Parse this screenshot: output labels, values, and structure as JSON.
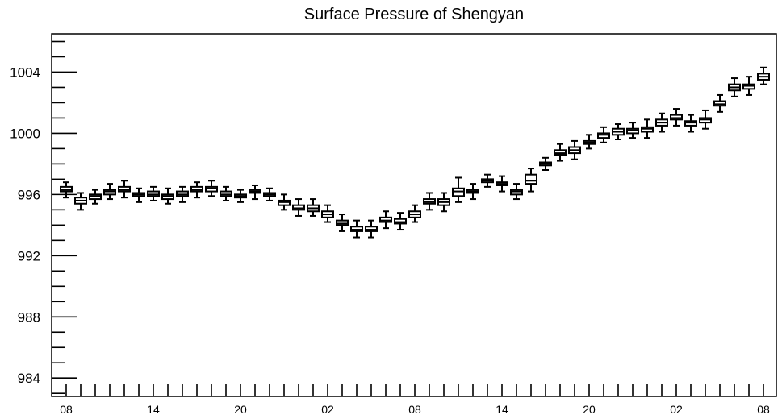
{
  "chart_data": {
    "type": "box",
    "title": "Surface Pressure of Shengyan",
    "xtick_labels": [
      "08",
      "14",
      "20",
      "02",
      "08",
      "14",
      "20",
      "02",
      "08"
    ],
    "yticks": [
      984,
      988,
      992,
      996,
      1000,
      1004
    ],
    "ylim": [
      982.8,
      1006.5
    ],
    "grid": false,
    "box_color": "#000000",
    "boxes": [
      {
        "hour": 8,
        "min": 995.8,
        "q1": 996.2,
        "median": 996.3,
        "q3": 996.5,
        "max": 996.8
      },
      {
        "hour": 9,
        "min": 995.0,
        "q1": 995.4,
        "median": 995.6,
        "q3": 995.8,
        "max": 996.1
      },
      {
        "hour": 10,
        "min": 995.4,
        "q1": 995.7,
        "median": 995.9,
        "q3": 996.0,
        "max": 996.3
      },
      {
        "hour": 11,
        "min": 995.7,
        "q1": 996.0,
        "median": 996.2,
        "q3": 996.3,
        "max": 996.7
      },
      {
        "hour": 12,
        "min": 995.8,
        "q1": 996.2,
        "median": 996.3,
        "q3": 996.5,
        "max": 996.9
      },
      {
        "hour": 13,
        "min": 995.5,
        "q1": 995.9,
        "median": 996.0,
        "q3": 996.1,
        "max": 996.4
      },
      {
        "hour": 14,
        "min": 995.6,
        "q1": 995.9,
        "median": 996.0,
        "q3": 996.2,
        "max": 996.5
      },
      {
        "hour": 15,
        "min": 995.4,
        "q1": 995.7,
        "median": 995.9,
        "q3": 996.0,
        "max": 996.4
      },
      {
        "hour": 16,
        "min": 995.5,
        "q1": 995.9,
        "median": 996.0,
        "q3": 996.2,
        "max": 996.5
      },
      {
        "hour": 17,
        "min": 995.8,
        "q1": 996.2,
        "median": 996.3,
        "q3": 996.5,
        "max": 996.8
      },
      {
        "hour": 18,
        "min": 995.9,
        "q1": 996.2,
        "median": 996.4,
        "q3": 996.5,
        "max": 996.9
      },
      {
        "hour": 19,
        "min": 995.6,
        "q1": 995.9,
        "median": 996.0,
        "q3": 996.2,
        "max": 996.5
      },
      {
        "hour": 20,
        "min": 995.5,
        "q1": 995.8,
        "median": 995.9,
        "q3": 996.0,
        "max": 996.3
      },
      {
        "hour": 21,
        "min": 995.7,
        "q1": 996.1,
        "median": 996.2,
        "q3": 996.3,
        "max": 996.6
      },
      {
        "hour": 22,
        "min": 995.6,
        "q1": 995.9,
        "median": 996.0,
        "q3": 996.1,
        "max": 996.4
      },
      {
        "hour": 23,
        "min": 995.0,
        "q1": 995.3,
        "median": 995.5,
        "q3": 995.6,
        "max": 996.0
      },
      {
        "hour": 0,
        "min": 994.6,
        "q1": 995.0,
        "median": 995.1,
        "q3": 995.3,
        "max": 995.7
      },
      {
        "hour": 1,
        "min": 994.6,
        "q1": 994.9,
        "median": 995.1,
        "q3": 995.3,
        "max": 995.7
      },
      {
        "hour": 2,
        "min": 994.2,
        "q1": 994.5,
        "median": 994.7,
        "q3": 994.9,
        "max": 995.3
      },
      {
        "hour": 3,
        "min": 993.6,
        "q1": 994.0,
        "median": 994.1,
        "q3": 994.3,
        "max": 994.7
      },
      {
        "hour": 4,
        "min": 993.2,
        "q1": 993.6,
        "median": 993.7,
        "q3": 993.9,
        "max": 994.3
      },
      {
        "hour": 5,
        "min": 993.2,
        "q1": 993.6,
        "median": 993.7,
        "q3": 993.9,
        "max": 994.3
      },
      {
        "hour": 6,
        "min": 993.8,
        "q1": 994.2,
        "median": 994.3,
        "q3": 994.5,
        "max": 994.9
      },
      {
        "hour": 7,
        "min": 993.7,
        "q1": 994.1,
        "median": 994.2,
        "q3": 994.4,
        "max": 994.8
      },
      {
        "hour": 8,
        "min": 994.2,
        "q1": 994.5,
        "median": 994.7,
        "q3": 994.9,
        "max": 995.3
      },
      {
        "hour": 9,
        "min": 995.0,
        "q1": 995.4,
        "median": 995.5,
        "q3": 995.7,
        "max": 996.1
      },
      {
        "hour": 10,
        "min": 994.9,
        "q1": 995.3,
        "median": 995.5,
        "q3": 995.7,
        "max": 996.1
      },
      {
        "hour": 11,
        "min": 995.5,
        "q1": 995.9,
        "median": 996.2,
        "q3": 996.4,
        "max": 997.1
      },
      {
        "hour": 12,
        "min": 995.7,
        "q1": 996.1,
        "median": 996.2,
        "q3": 996.3,
        "max": 996.7
      },
      {
        "hour": 13,
        "min": 996.5,
        "q1": 996.8,
        "median": 996.9,
        "q3": 997.0,
        "max": 997.3
      },
      {
        "hour": 14,
        "min": 996.2,
        "q1": 996.6,
        "median": 996.7,
        "q3": 996.8,
        "max": 997.2
      },
      {
        "hour": 15,
        "min": 995.7,
        "q1": 996.0,
        "median": 996.2,
        "q3": 996.3,
        "max": 996.7
      },
      {
        "hour": 16,
        "min": 996.2,
        "q1": 996.7,
        "median": 996.9,
        "q3": 997.3,
        "max": 997.7
      },
      {
        "hour": 17,
        "min": 997.6,
        "q1": 997.9,
        "median": 998.0,
        "q3": 998.1,
        "max": 998.4
      },
      {
        "hour": 18,
        "min": 998.2,
        "q1": 998.6,
        "median": 998.7,
        "q3": 998.9,
        "max": 999.3
      },
      {
        "hour": 19,
        "min": 998.3,
        "q1": 998.7,
        "median": 998.9,
        "q3": 999.1,
        "max": 999.5
      },
      {
        "hour": 20,
        "min": 999.0,
        "q1": 999.3,
        "median": 999.4,
        "q3": 999.5,
        "max": 999.9
      },
      {
        "hour": 21,
        "min": 999.4,
        "q1": 999.7,
        "median": 999.9,
        "q3": 1000.0,
        "max": 1000.4
      },
      {
        "hour": 22,
        "min": 999.6,
        "q1": 999.9,
        "median": 1000.1,
        "q3": 1000.3,
        "max": 1000.6
      },
      {
        "hour": 23,
        "min": 999.7,
        "q1": 1000.0,
        "median": 1000.2,
        "q3": 1000.3,
        "max": 1000.7
      },
      {
        "hour": 0,
        "min": 999.7,
        "q1": 1000.1,
        "median": 1000.3,
        "q3": 1000.4,
        "max": 1000.9
      },
      {
        "hour": 1,
        "min": 1000.1,
        "q1": 1000.5,
        "median": 1000.7,
        "q3": 1000.9,
        "max": 1001.3
      },
      {
        "hour": 2,
        "min": 1000.5,
        "q1": 1000.9,
        "median": 1001.0,
        "q3": 1001.2,
        "max": 1001.6
      },
      {
        "hour": 3,
        "min": 1000.1,
        "q1": 1000.5,
        "median": 1000.7,
        "q3": 1000.8,
        "max": 1001.2
      },
      {
        "hour": 4,
        "min": 1000.3,
        "q1": 1000.7,
        "median": 1000.9,
        "q3": 1001.0,
        "max": 1001.5
      },
      {
        "hour": 5,
        "min": 1001.4,
        "q1": 1001.8,
        "median": 1001.9,
        "q3": 1002.1,
        "max": 1002.5
      },
      {
        "hour": 6,
        "min": 1002.4,
        "q1": 1002.8,
        "median": 1003.0,
        "q3": 1003.2,
        "max": 1003.6
      },
      {
        "hour": 7,
        "min": 1002.5,
        "q1": 1002.9,
        "median": 1003.1,
        "q3": 1003.2,
        "max": 1003.7
      },
      {
        "hour": 8,
        "min": 1003.2,
        "q1": 1003.5,
        "median": 1003.7,
        "q3": 1003.9,
        "max": 1004.3
      }
    ]
  }
}
